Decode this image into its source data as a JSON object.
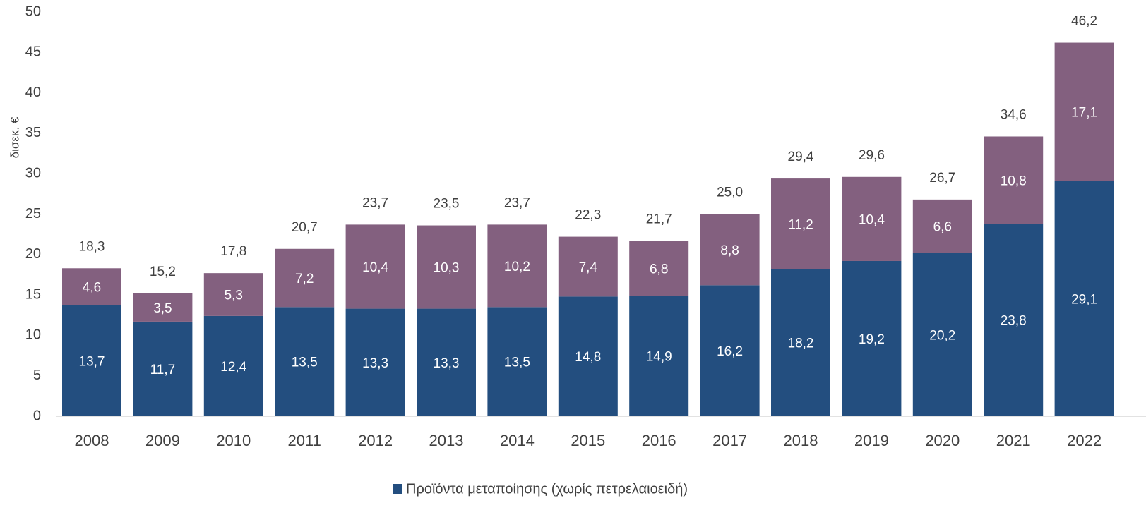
{
  "chart_data": {
    "type": "stacked_bar",
    "ylabel": "δισεκ. €",
    "categories": [
      "2008",
      "2009",
      "2010",
      "2011",
      "2012",
      "2013",
      "2014",
      "2015",
      "2016",
      "2017",
      "2018",
      "2019",
      "2020",
      "2021",
      "2022"
    ],
    "series": [
      {
        "name": "Προϊόντα μεταποίησης (χωρίς πετρελαιοειδή)",
        "color": "#234e7f",
        "values": [
          13.7,
          11.7,
          12.4,
          13.5,
          13.3,
          13.3,
          13.5,
          14.8,
          14.9,
          16.2,
          18.2,
          19.2,
          20.2,
          23.8,
          29.1
        ],
        "value_labels": [
          "13,7",
          "11,7",
          "12,4",
          "13,5",
          "13,3",
          "13,3",
          "13,5",
          "14,8",
          "14,9",
          "16,2",
          "18,2",
          "19,2",
          "20,2",
          "23,8",
          "29,1"
        ]
      },
      {
        "color": "#83607f",
        "values": [
          4.6,
          3.5,
          5.3,
          7.2,
          10.4,
          10.3,
          10.2,
          7.4,
          6.8,
          8.8,
          11.2,
          10.4,
          6.6,
          10.8,
          17.1
        ],
        "value_labels": [
          "4,6",
          "3,5",
          "5,3",
          "7,2",
          "10,4",
          "10,3",
          "10,2",
          "7,4",
          "6,8",
          "8,8",
          "11,2",
          "10,4",
          "6,6",
          "10,8",
          "17,1"
        ]
      }
    ],
    "totals": [
      18.3,
      15.2,
      17.8,
      20.7,
      23.7,
      23.5,
      23.7,
      22.3,
      21.7,
      25.0,
      29.4,
      29.6,
      26.7,
      34.6,
      46.2
    ],
    "total_labels": [
      "18,3",
      "15,2",
      "17,8",
      "20,7",
      "23,7",
      "23,5",
      "23,7",
      "22,3",
      "21,7",
      "25,0",
      "29,4",
      "29,6",
      "26,7",
      "34,6",
      "46,2"
    ],
    "ylim": [
      0,
      50
    ],
    "yticks": [
      0,
      5,
      10,
      15,
      20,
      25,
      30,
      35,
      40,
      45,
      50
    ],
    "grid": false
  }
}
